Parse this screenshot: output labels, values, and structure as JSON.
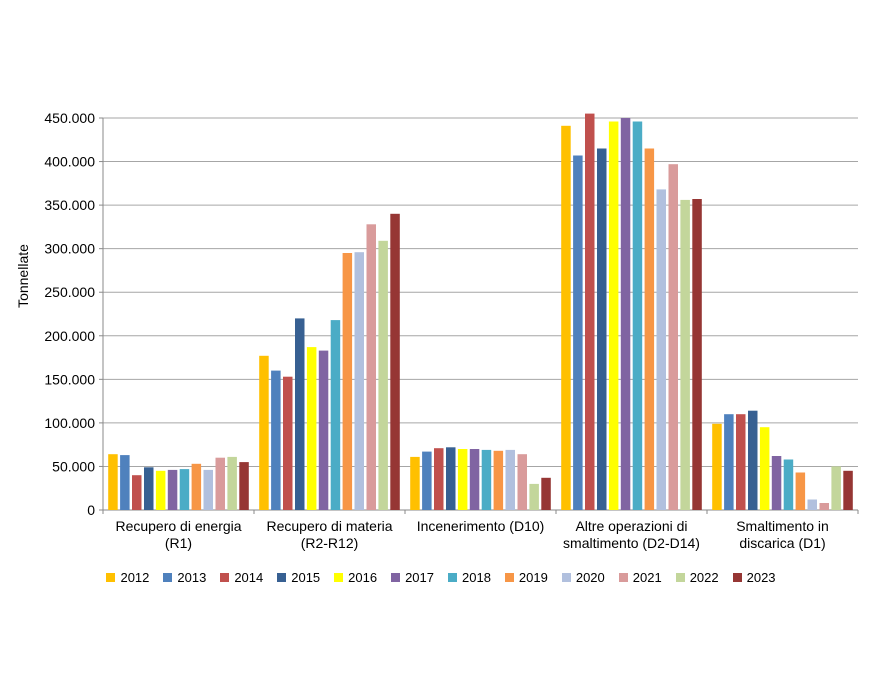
{
  "chart_data": {
    "type": "bar",
    "title": "",
    "xlabel": "",
    "ylabel": "Tonnellate",
    "ylim": [
      0,
      450000
    ],
    "ytick_step": 50000,
    "ytick_labels": [
      "0",
      "50.000",
      "100.000",
      "150.000",
      "200.000",
      "250.000",
      "300.000",
      "350.000",
      "400.000",
      "450.000"
    ],
    "grid": true,
    "legend_position": "bottom",
    "categories": [
      "Recupero di energia (R1)",
      "Recupero di materia (R2-R12)",
      "Incenerimento (D10)",
      "Altre operazioni di smaltimento (D2-D14)",
      "Smaltimento in discarica (D1)"
    ],
    "category_lines": [
      [
        "Recupero di energia",
        "(R1)"
      ],
      [
        "Recupero di materia",
        "(R2-R12)"
      ],
      [
        "Incenerimento (D10)"
      ],
      [
        "Altre operazioni di",
        "smaltimento (D2-D14)"
      ],
      [
        "Smaltimento in",
        "discarica (D1)"
      ]
    ],
    "series": [
      {
        "name": "2012",
        "color": "#FFC000",
        "values": [
          64000,
          177000,
          61000,
          441000,
          99000
        ]
      },
      {
        "name": "2013",
        "color": "#4F81BD",
        "values": [
          63000,
          160000,
          67000,
          407000,
          110000
        ]
      },
      {
        "name": "2014",
        "color": "#C0504D",
        "values": [
          40000,
          153000,
          71000,
          455000,
          110000
        ]
      },
      {
        "name": "2015",
        "color": "#376092",
        "values": [
          49000,
          220000,
          72000,
          415000,
          114000
        ]
      },
      {
        "name": "2016",
        "color": "#FFFF00",
        "values": [
          45000,
          187000,
          70000,
          446000,
          95000
        ]
      },
      {
        "name": "2017",
        "color": "#8064A2",
        "values": [
          46000,
          183000,
          70000,
          450000,
          62000
        ]
      },
      {
        "name": "2018",
        "color": "#4BACC6",
        "values": [
          47000,
          218000,
          69000,
          446000,
          58000
        ]
      },
      {
        "name": "2019",
        "color": "#F79646",
        "values": [
          53000,
          295000,
          68000,
          415000,
          43000
        ]
      },
      {
        "name": "2020",
        "color": "#B1C0DE",
        "values": [
          46000,
          296000,
          69000,
          368000,
          12000
        ]
      },
      {
        "name": "2021",
        "color": "#D99B9B",
        "values": [
          60000,
          328000,
          64000,
          397000,
          8000
        ]
      },
      {
        "name": "2022",
        "color": "#C3D69B",
        "values": [
          61000,
          309000,
          30000,
          356000,
          50000
        ]
      },
      {
        "name": "2023",
        "color": "#963634",
        "values": [
          55000,
          340000,
          37000,
          357000,
          45000
        ]
      }
    ]
  }
}
